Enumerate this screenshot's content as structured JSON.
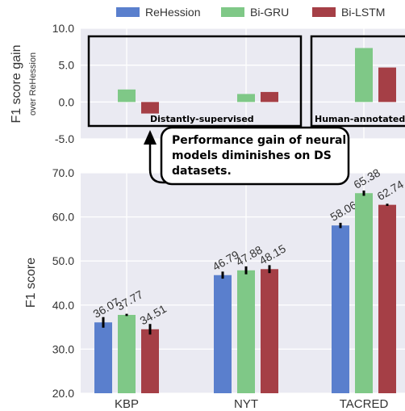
{
  "legend": {
    "items": [
      {
        "label": "ReHession",
        "color": "#5a7fcd"
      },
      {
        "label": "Bi-GRU",
        "color": "#7fc887"
      },
      {
        "label": "Bi-LSTM",
        "color": "#a53f46"
      }
    ],
    "placement": "top"
  },
  "annotations": {
    "ds_box_label": "Distantly-supervised",
    "human_box_label": "Human-annotated",
    "callout_line1": "Performance gain of neural",
    "callout_line2": "models diminishes on DS",
    "callout_line3": "datasets."
  },
  "chart_data": [
    {
      "type": "bar",
      "ylabel": "F1 score gain",
      "ylabel_sub": "over ReHession",
      "ylim": [
        -5,
        10
      ],
      "yticks": [
        "-5.0",
        "0.0",
        "5.0",
        "10.0"
      ],
      "categories": [
        "KBP",
        "NYT",
        "TACRED"
      ],
      "series": [
        {
          "name": "Bi-GRU",
          "values": [
            1.7,
            1.09,
            7.32
          ]
        },
        {
          "name": "Bi-LSTM",
          "values": [
            -1.56,
            1.36,
            4.68
          ]
        }
      ],
      "grid": true
    },
    {
      "type": "bar",
      "ylabel": "F1 score",
      "ylim": [
        20,
        70
      ],
      "yticks": [
        "20.0",
        "30.0",
        "40.0",
        "50.0",
        "60.0",
        "70.0"
      ],
      "categories": [
        "KBP",
        "NYT",
        "TACRED"
      ],
      "series": [
        {
          "name": "ReHession",
          "values": [
            36.07,
            46.79,
            58.06
          ],
          "labels": [
            "36.07",
            "46.79",
            "58.06"
          ],
          "err": [
            1.2,
            0.8,
            0.6
          ]
        },
        {
          "name": "Bi-GRU",
          "values": [
            37.77,
            47.88,
            65.38
          ],
          "labels": [
            "37.77",
            "47.88",
            "65.38"
          ],
          "err": [
            0.25,
            0.9,
            0.6
          ]
        },
        {
          "name": "Bi-LSTM",
          "values": [
            34.51,
            48.15,
            62.74
          ],
          "labels": [
            "34.51",
            "48.15",
            "62.74"
          ],
          "err": [
            1.2,
            0.9,
            0.25
          ]
        }
      ],
      "grid": true
    }
  ]
}
